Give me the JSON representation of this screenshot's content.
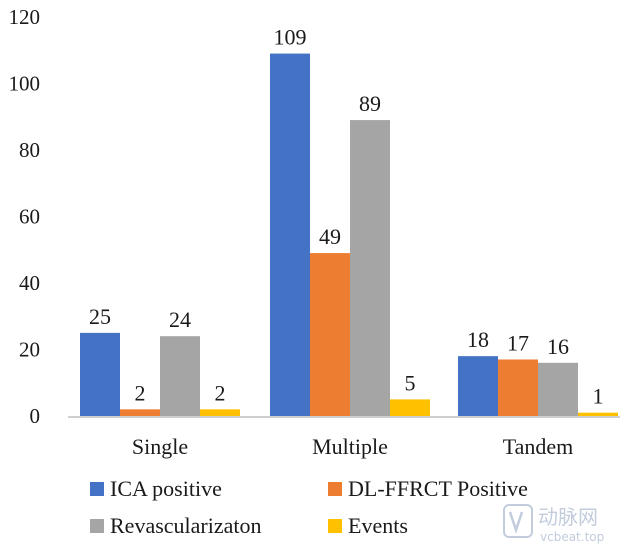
{
  "chart_data": {
    "type": "bar",
    "categories": [
      "Single",
      "Multiple",
      "Tandem"
    ],
    "series": [
      {
        "name": "ICA positive",
        "color": "#4472C4",
        "values": [
          25,
          109,
          18
        ]
      },
      {
        "name": "DL-FFRCT Positive",
        "color": "#ED7D31",
        "values": [
          2,
          49,
          17
        ]
      },
      {
        "name": "Revascularizaton",
        "color": "#A5A5A5",
        "values": [
          24,
          89,
          16
        ]
      },
      {
        "name": "Events",
        "color": "#FFC000",
        "values": [
          2,
          5,
          1
        ]
      }
    ],
    "yticks": [
      "0",
      "20",
      "40",
      "60",
      "80",
      "100",
      "120"
    ],
    "ylim": [
      0,
      120
    ],
    "title": "",
    "xlabel": "",
    "ylabel": "",
    "grid": false,
    "legend_position": "bottom"
  },
  "watermark": {
    "logo_text": "动脉网",
    "url_text": "vcbeat.top"
  }
}
